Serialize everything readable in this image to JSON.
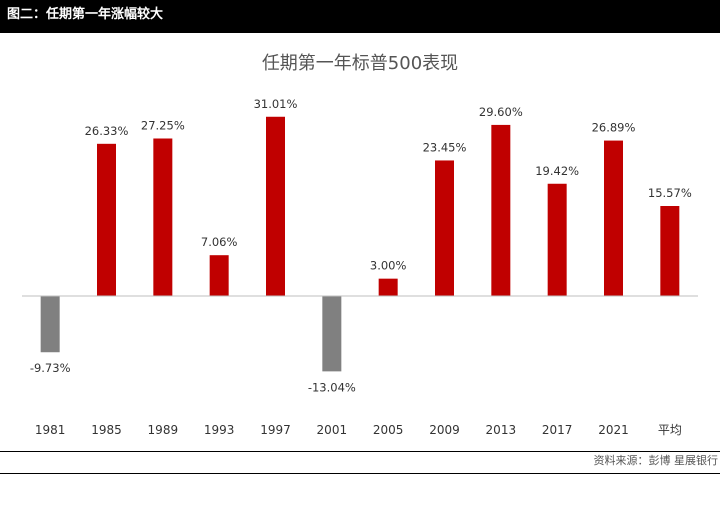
{
  "header": {
    "title": "图二：任期第一年涨幅较大"
  },
  "source": "资料来源：彭博 星展银行",
  "colors": {
    "positive": "#c00000",
    "negative": "#808080",
    "header_bg": "#000000"
  },
  "chart_data": {
    "type": "bar",
    "title": "任期第一年标普500表现",
    "xlabel": "",
    "ylabel": "",
    "categories": [
      "1981",
      "1985",
      "1989",
      "1993",
      "1997",
      "2001",
      "2005",
      "2009",
      "2013",
      "2017",
      "2021",
      "平均"
    ],
    "values": [
      -9.73,
      26.33,
      27.25,
      7.06,
      31.01,
      -13.04,
      3.0,
      23.45,
      29.6,
      19.42,
      26.89,
      15.57
    ],
    "data_labels": [
      "-9.73%",
      "26.33%",
      "27.25%",
      "7.06%",
      "31.01%",
      "-13.04%",
      "3.00%",
      "23.45%",
      "29.60%",
      "19.42%",
      "26.89%",
      "15.57%"
    ],
    "ylim": [
      -15,
      35
    ],
    "grid": false,
    "legend": "none"
  }
}
